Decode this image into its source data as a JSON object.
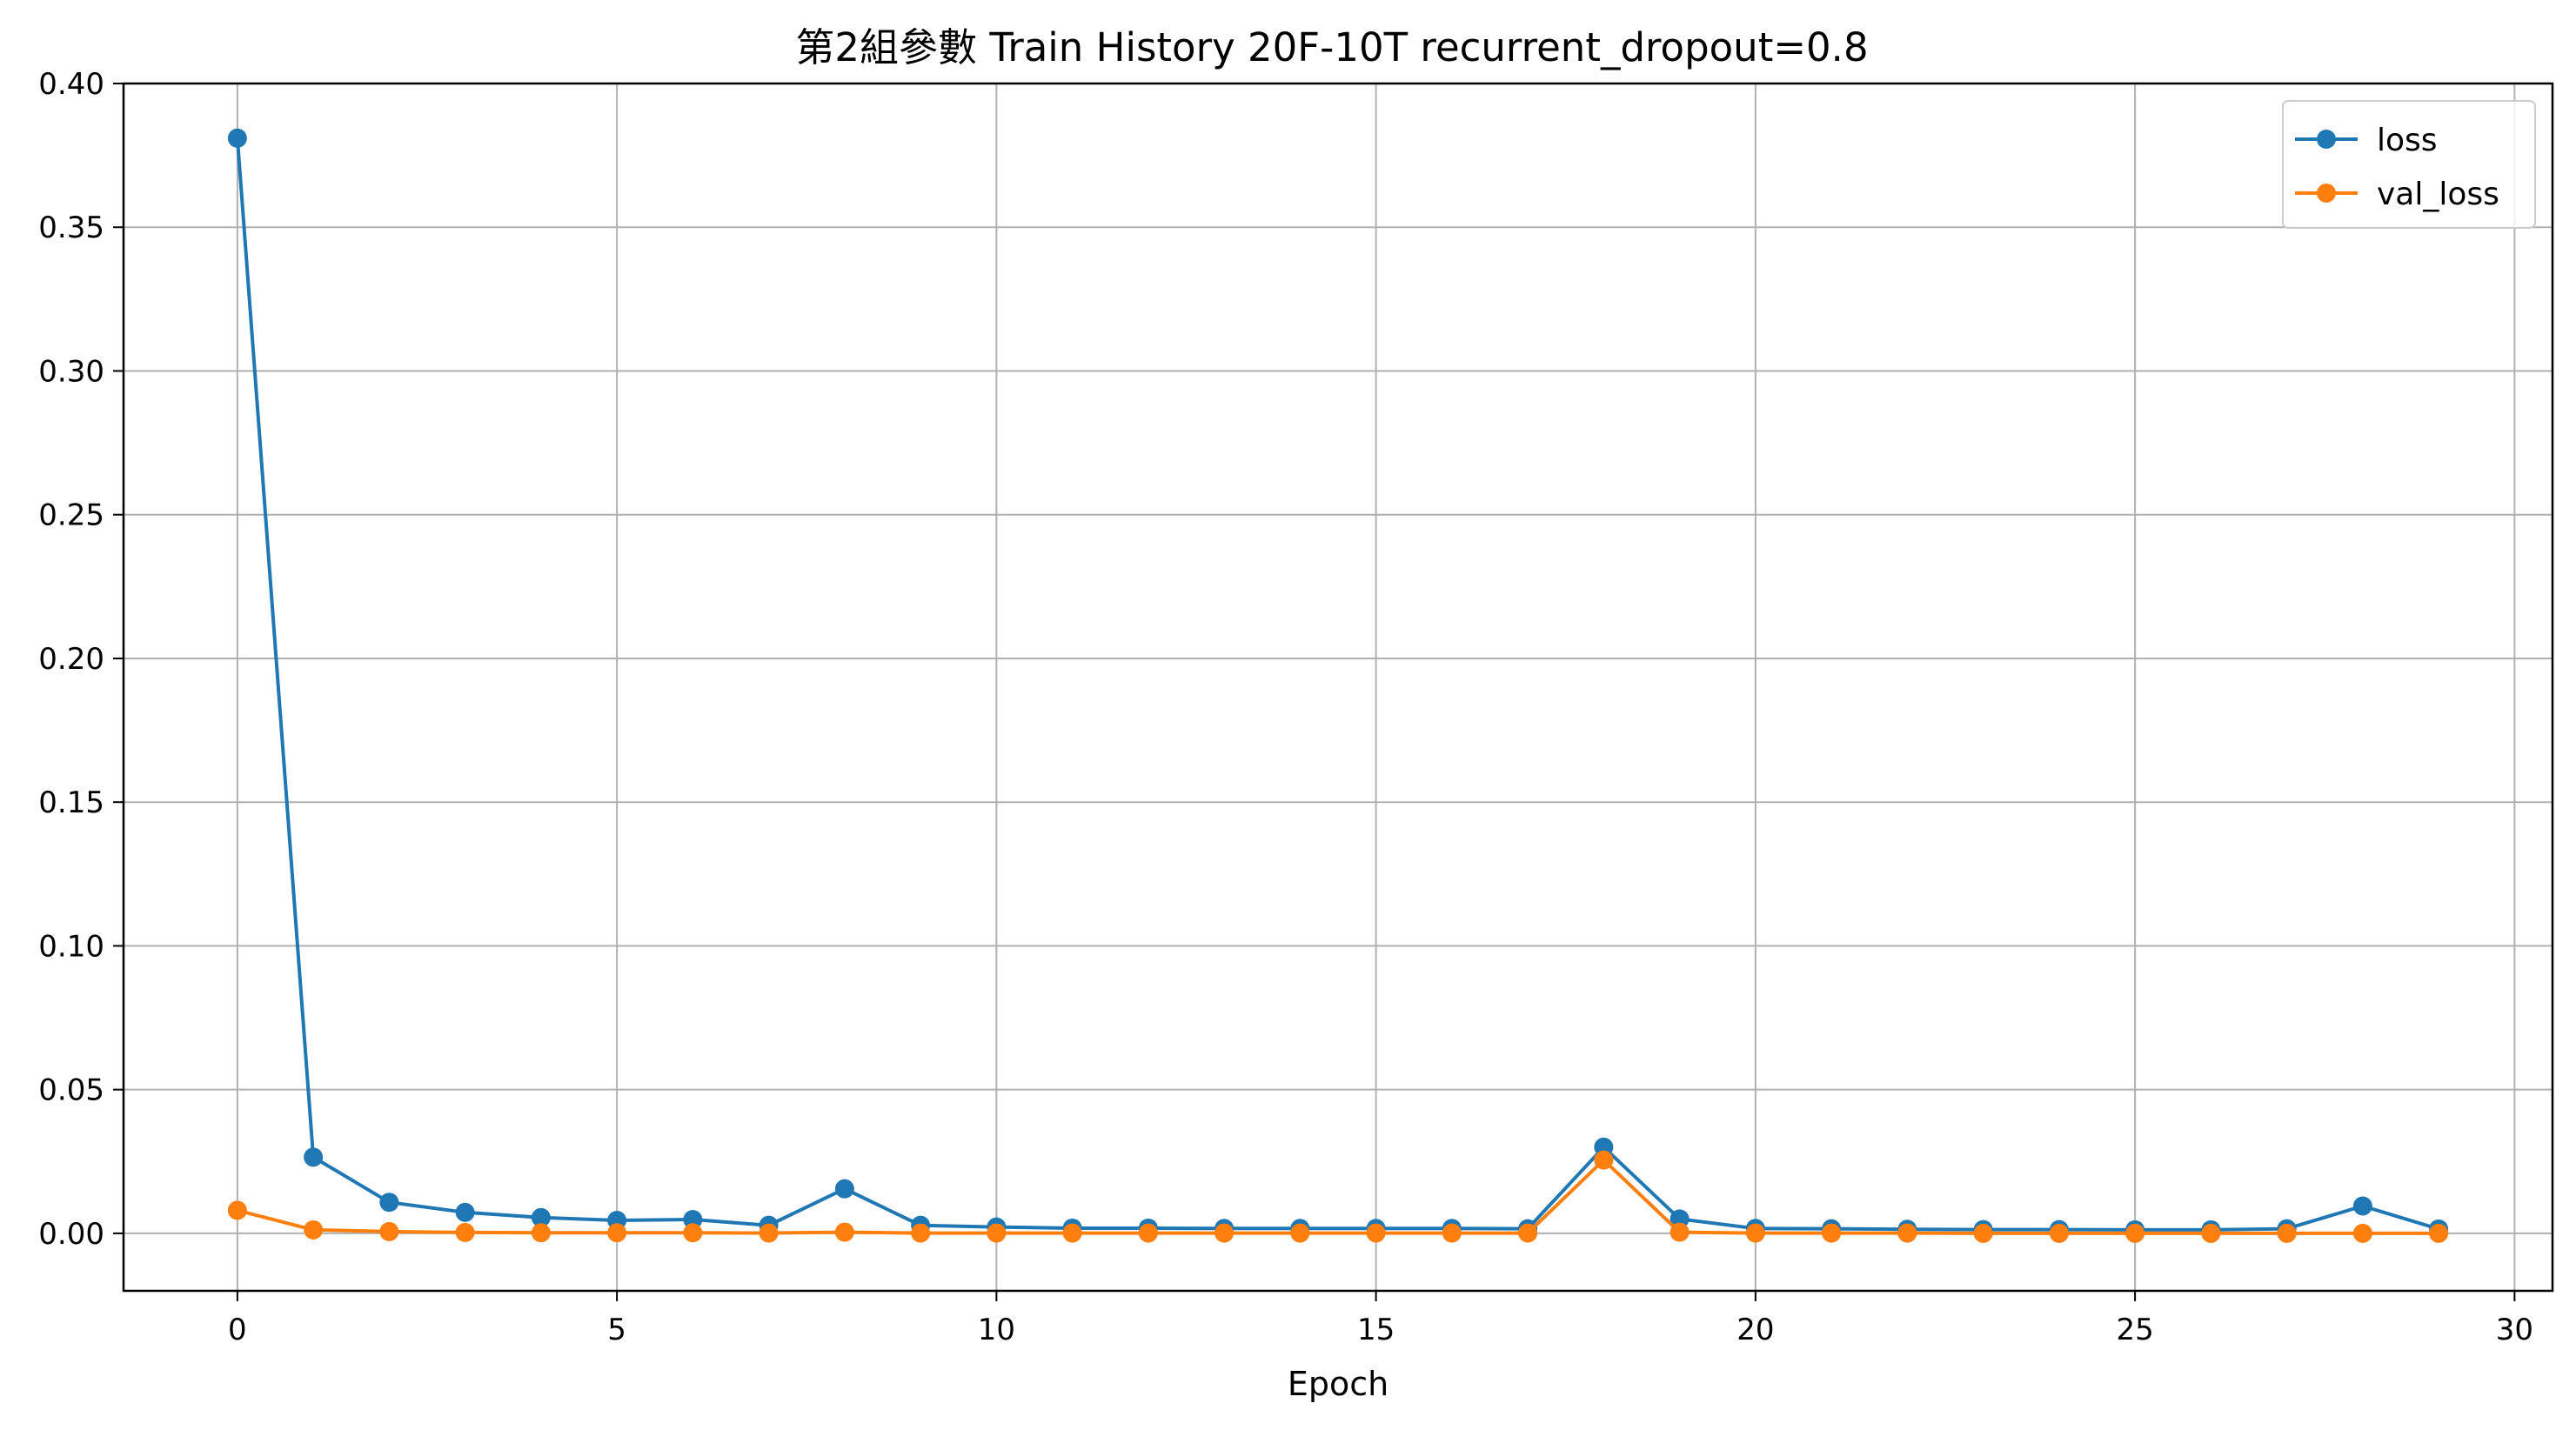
{
  "chart_data": {
    "type": "line",
    "title": "第2組參數 Train History 20F-10T recurrent_dropout=0.8",
    "xlabel": "Epoch",
    "ylabel": "",
    "xlim": [
      -1.5,
      30.5
    ],
    "ylim": [
      -0.02,
      0.4
    ],
    "xticks": [
      0,
      5,
      10,
      15,
      20,
      25,
      30
    ],
    "xtick_labels": [
      "0",
      "5",
      "10",
      "15",
      "20",
      "25",
      "30"
    ],
    "yticks": [
      0.0,
      0.05,
      0.1,
      0.15,
      0.2,
      0.25,
      0.3,
      0.35,
      0.4
    ],
    "ytick_labels": [
      "0.00",
      "0.05",
      "0.10",
      "0.15",
      "0.20",
      "0.25",
      "0.30",
      "0.35",
      "0.40"
    ],
    "grid": true,
    "legend_position": "top-right",
    "x": [
      0,
      1,
      2,
      3,
      4,
      5,
      6,
      7,
      8,
      9,
      10,
      11,
      12,
      13,
      14,
      15,
      16,
      17,
      18,
      19,
      20,
      21,
      22,
      23,
      24,
      25,
      26,
      27,
      28,
      29
    ],
    "series": [
      {
        "name": "loss",
        "color": "#1f77b4",
        "values": [
          0.381,
          0.0265,
          0.0108,
          0.0073,
          0.0055,
          0.0045,
          0.0048,
          0.0028,
          0.0155,
          0.0028,
          0.0022,
          0.0018,
          0.0018,
          0.0017,
          0.0017,
          0.0017,
          0.0017,
          0.0016,
          0.03,
          0.005,
          0.0017,
          0.0016,
          0.0014,
          0.0013,
          0.0013,
          0.0012,
          0.0012,
          0.0016,
          0.0095,
          0.0015
        ]
      },
      {
        "name": "val_loss",
        "color": "#ff7f0e",
        "values": [
          0.008,
          0.0012,
          0.0006,
          0.0003,
          0.0002,
          0.0002,
          0.0002,
          0.0001,
          0.0004,
          0.0001,
          0.0001,
          0.0001,
          0.0001,
          0.0001,
          0.0001,
          0.0001,
          0.0001,
          0.0001,
          0.0255,
          0.0004,
          0.0001,
          0.0001,
          0.0001,
          0.0,
          0.0,
          0.0,
          0.0,
          0.0,
          0.0,
          0.0
        ]
      }
    ]
  }
}
